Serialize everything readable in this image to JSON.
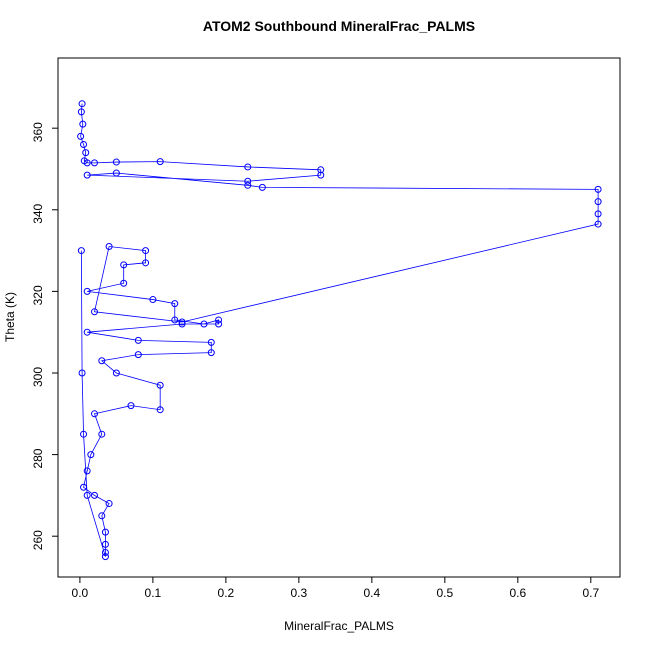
{
  "chart_data": {
    "type": "line",
    "title": "ATOM2 Southbound MineralFrac_PALMS",
    "x_label": "MineralFrac_PALMS",
    "y_label": "Theta (K)",
    "xlim": [
      -0.03,
      0.74
    ],
    "ylim": [
      250,
      377.2
    ],
    "xticks": [
      {
        "value": 0,
        "label": "0.0"
      },
      {
        "value": 0.1,
        "label": "0.1"
      },
      {
        "value": 0.2,
        "label": "0.2"
      },
      {
        "value": 0.3,
        "label": "0.3"
      },
      {
        "value": 0.4,
        "label": "0.4"
      },
      {
        "value": 0.5,
        "label": "0.5"
      },
      {
        "value": 0.6,
        "label": "0.6"
      },
      {
        "value": 0.7,
        "label": "0.7"
      }
    ],
    "yticks": [
      260,
      280,
      300,
      320,
      340,
      360
    ],
    "series": [
      {
        "color": "#0000ff",
        "x": [
          0.003,
          0.002,
          0.004,
          0.001,
          0.005,
          0.008,
          0.006,
          0.01,
          0.02,
          0.05,
          0.11,
          0.23,
          0.33,
          0.33,
          0.23,
          0.01,
          0.05,
          0.23,
          0.25,
          0.71,
          0.71,
          0.71,
          0.71,
          0.14,
          0.02,
          0.04,
          0.09,
          0.09,
          0.06,
          0.06,
          0.01,
          0.1,
          0.13,
          0.13,
          0.17,
          0.19,
          0.19,
          0.14,
          0.01,
          0.08,
          0.18,
          0.18,
          0.08,
          0.03,
          0.05,
          0.11,
          0.11,
          0.07,
          0.02,
          0.03,
          0.015,
          0.01,
          0.005,
          0.02,
          0.04,
          0.03,
          0.035,
          0.035,
          0.035,
          0.035,
          0.01,
          0.005,
          0.003,
          0.002
        ],
        "values": [
          366,
          364,
          361,
          358,
          356,
          354,
          352,
          351.5,
          351.5,
          351.7,
          351.8,
          350.5,
          349.8,
          348.5,
          347,
          348.5,
          349,
          346,
          345.5,
          345,
          342,
          339,
          336.5,
          312.5,
          315,
          331,
          330,
          327,
          326.5,
          322,
          320,
          318,
          317,
          313,
          312,
          313,
          312,
          312,
          310,
          308,
          307.5,
          305,
          304.5,
          303,
          300,
          297,
          291,
          292,
          290,
          285,
          280,
          276,
          272,
          270,
          268,
          265,
          261,
          258,
          256,
          255,
          270,
          285,
          300,
          330
        ]
      }
    ]
  }
}
